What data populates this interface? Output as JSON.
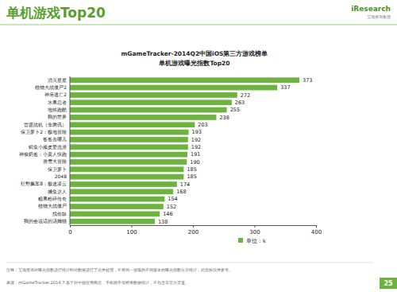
{
  "header": {
    "title": "单机游戏Top20",
    "logo": "iResearch",
    "logo_sub": "艾瑞咨询集团"
  },
  "chart_data": {
    "type": "bar",
    "orientation": "horizontal",
    "title": "mGameTracker-2014Q2中国iOS第三方游戏榜单",
    "subtitle": "单机游戏曝光指数Top20",
    "categories": [
      "消灭星星",
      "植物大战僵尸2",
      "神庙逃亡2",
      "水果忍者",
      "地铁跑酷",
      "我的世界",
      "雷霆战机（非腾讯）",
      "保卫萝卜2：极地冒险",
      "爸爸去哪儿",
      "鳄鱼小顽皮爱洗澡",
      "神偷奶爸：小黄人快跑",
      "滑雪大冒险",
      "保卫萝卜",
      "2048",
      "狂野飙车8：极速凌云",
      "捕鱼达人",
      "糖果粉碎传奇",
      "植物大战僵尸",
      "找你妹",
      "我的会说话的汤姆猫"
    ],
    "series": [
      {
        "name": "单位：k",
        "color": "#6db33f",
        "values": [
          373,
          337,
          272,
          263,
          255,
          238,
          203,
          193,
          192,
          192,
          191,
          190,
          185,
          185,
          174,
          168,
          154,
          152,
          146,
          138
        ]
      }
    ],
    "xlim": [
      0,
      400
    ],
    "xticks": [
      0,
      100,
      200,
      300,
      400
    ],
    "grid": false,
    "data_labels": true,
    "legend": "bottom-right"
  },
  "footer": {
    "note": "注释：艾瑞咨询对曝光指数进行统计时对数据进行了合并处理，不将同一游戏的不同版本的曝光指数分开统计，此指标仅供参考。",
    "source": "来源：mGameTracker.2014.7.基于对中国应用商店、手机助手等榜单数据统计，不包含非官方渠道。",
    "page": "25"
  }
}
